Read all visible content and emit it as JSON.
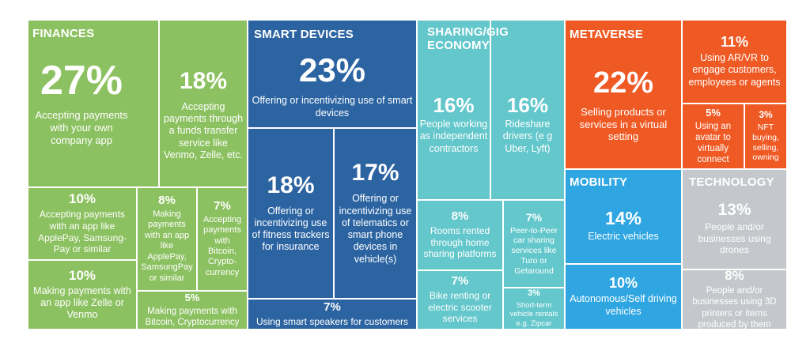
{
  "colors": {
    "finances": "#8cc161",
    "smart_devices": "#2c64a2",
    "sharing": "#63c7cb",
    "metaverse": "#ef5a24",
    "mobility": "#2fa6e2",
    "technology": "#c4c7cb"
  },
  "chart_data": {
    "type": "treemap",
    "categories": [
      {
        "name": "FINANCES",
        "items": [
          {
            "value": "27%",
            "label": "Accepting payments with your own company app"
          },
          {
            "value": "18%",
            "label": "Accepting payments through a funds transfer service like Venmo, Zelle, etc."
          },
          {
            "value": "10%",
            "label": "Accepting payments with an app like ApplePay, Samsung-Pay or similar"
          },
          {
            "value": "8%",
            "label": "Making payments with an app like ApplePay, SamsungPay or similar"
          },
          {
            "value": "7%",
            "label": "Accepting payments with Bitcoin, Crypto-currency"
          },
          {
            "value": "10%",
            "label": "Making payments with an app like Zelle or Venmo"
          },
          {
            "value": "5%",
            "label": "Making payments with Bitcoin, Cryptocurrency"
          }
        ]
      },
      {
        "name": "SMART DEVICES",
        "items": [
          {
            "value": "23%",
            "label": "Offering or incentivizing use of smart devices"
          },
          {
            "value": "18%",
            "label": "Offering or incentivizing use of fitness trackers for insurance"
          },
          {
            "value": "17%",
            "label": "Offering or incentivizing use of telematics or smart phone devices in vehicle(s)"
          },
          {
            "value": "7%",
            "label": "Using smart speakers for customers"
          }
        ]
      },
      {
        "name": "SHARING/GIG\nECONOMY",
        "items": [
          {
            "value": "16%",
            "label": "People working as independent contractors"
          },
          {
            "value": "16%",
            "label": "Rideshare drivers (e g Uber, Lyft)"
          },
          {
            "value": "8%",
            "label": "Rooms rented through home sharing platforms"
          },
          {
            "value": "7%",
            "label": "Peer-to-Peer car sharing services like Turo or Getaround"
          },
          {
            "value": "7%",
            "label": "Bike renting or electric scooter services"
          },
          {
            "value": "3%",
            "label": "Short-term vehicle rentals e.g. Zipcar"
          }
        ]
      },
      {
        "name": "METAVERSE",
        "items": [
          {
            "value": "22%",
            "label": "Selling products or services in a virtual setting"
          },
          {
            "value": "11%",
            "label": "Using AR/VR to engage customers, employees or agents"
          },
          {
            "value": "5%",
            "label": "Using an avatar to virtually connect"
          },
          {
            "value": "3%",
            "label": "NFT buying, selling, owning"
          }
        ]
      },
      {
        "name": "MOBILITY",
        "items": [
          {
            "value": "14%",
            "label": "Electric vehicles"
          },
          {
            "value": "10%",
            "label": "Autonomous/Self driving vehicles"
          }
        ]
      },
      {
        "name": "TECHNOLOGY",
        "items": [
          {
            "value": "13%",
            "label": "People and/or businesses using drones"
          },
          {
            "value": "8%",
            "label": "People and/or businesses using 3D printers or items produced by them"
          }
        ]
      }
    ]
  }
}
